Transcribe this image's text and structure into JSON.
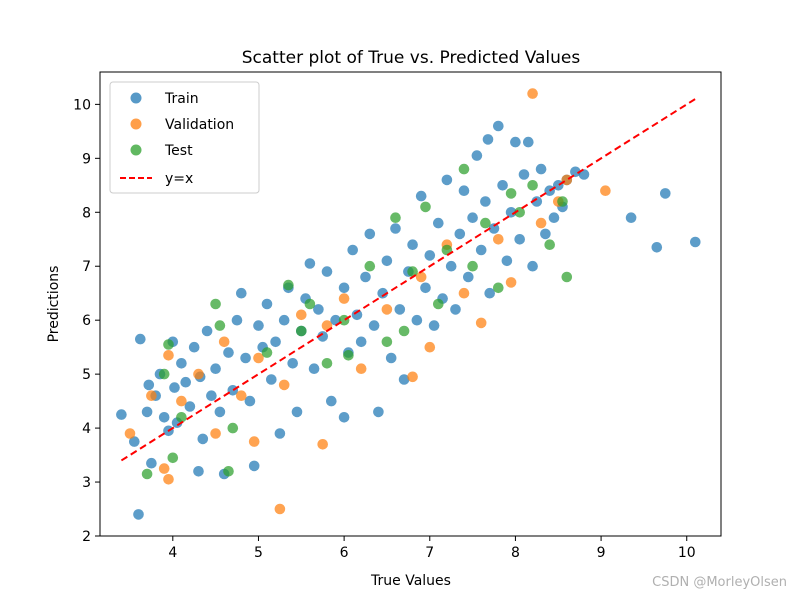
{
  "watermark": "CSDN @MorleyOlsen",
  "chart_data": {
    "type": "scatter",
    "title": "Scatter plot of True vs. Predicted Values",
    "xlabel": "True Values",
    "ylabel": "Predictions",
    "xlim": [
      3.15,
      10.4
    ],
    "ylim": [
      2.0,
      10.6
    ],
    "xticks": [
      4,
      5,
      6,
      7,
      8,
      9,
      10
    ],
    "yticks": [
      2,
      3,
      4,
      5,
      6,
      7,
      8,
      9,
      10
    ],
    "grid": false,
    "legend_position": "top-left",
    "series": [
      {
        "name": "Train",
        "color": "#1f77b4",
        "points": [
          [
            3.4,
            4.25
          ],
          [
            3.55,
            3.75
          ],
          [
            3.6,
            2.4
          ],
          [
            3.62,
            5.65
          ],
          [
            3.7,
            4.3
          ],
          [
            3.72,
            4.8
          ],
          [
            3.75,
            3.35
          ],
          [
            3.8,
            4.6
          ],
          [
            3.85,
            5.0
          ],
          [
            3.9,
            4.2
          ],
          [
            3.95,
            3.95
          ],
          [
            4.0,
            5.6
          ],
          [
            4.02,
            4.75
          ],
          [
            4.05,
            4.1
          ],
          [
            4.1,
            5.2
          ],
          [
            4.15,
            4.85
          ],
          [
            4.2,
            4.4
          ],
          [
            4.25,
            5.5
          ],
          [
            4.3,
            3.2
          ],
          [
            4.32,
            4.95
          ],
          [
            4.35,
            3.8
          ],
          [
            4.4,
            5.8
          ],
          [
            4.45,
            4.6
          ],
          [
            4.5,
            5.1
          ],
          [
            4.55,
            4.3
          ],
          [
            4.6,
            3.15
          ],
          [
            4.65,
            5.4
          ],
          [
            4.7,
            4.7
          ],
          [
            4.75,
            6.0
          ],
          [
            4.8,
            6.5
          ],
          [
            4.85,
            5.3
          ],
          [
            4.9,
            4.5
          ],
          [
            4.95,
            3.3
          ],
          [
            5.0,
            5.9
          ],
          [
            5.05,
            5.5
          ],
          [
            5.1,
            6.3
          ],
          [
            5.15,
            4.9
          ],
          [
            5.2,
            5.6
          ],
          [
            5.25,
            3.9
          ],
          [
            5.3,
            6.0
          ],
          [
            5.35,
            6.6
          ],
          [
            5.4,
            5.2
          ],
          [
            5.45,
            4.3
          ],
          [
            5.5,
            5.8
          ],
          [
            5.55,
            6.4
          ],
          [
            5.6,
            7.05
          ],
          [
            5.65,
            5.1
          ],
          [
            5.7,
            6.2
          ],
          [
            5.75,
            5.7
          ],
          [
            5.8,
            6.9
          ],
          [
            5.85,
            4.5
          ],
          [
            5.9,
            6.0
          ],
          [
            6.0,
            6.6
          ],
          [
            6.0,
            4.2
          ],
          [
            6.05,
            5.4
          ],
          [
            6.1,
            7.3
          ],
          [
            6.15,
            6.1
          ],
          [
            6.2,
            5.6
          ],
          [
            6.25,
            6.8
          ],
          [
            6.3,
            7.6
          ],
          [
            6.35,
            5.9
          ],
          [
            6.4,
            4.3
          ],
          [
            6.45,
            6.5
          ],
          [
            6.5,
            7.1
          ],
          [
            6.55,
            5.3
          ],
          [
            6.6,
            7.7
          ],
          [
            6.65,
            6.2
          ],
          [
            6.7,
            4.9
          ],
          [
            6.75,
            6.9
          ],
          [
            6.8,
            7.4
          ],
          [
            6.85,
            6.0
          ],
          [
            6.9,
            8.3
          ],
          [
            6.95,
            6.6
          ],
          [
            7.0,
            7.2
          ],
          [
            7.05,
            5.9
          ],
          [
            7.1,
            7.8
          ],
          [
            7.15,
            6.4
          ],
          [
            7.2,
            8.6
          ],
          [
            7.25,
            7.0
          ],
          [
            7.3,
            6.2
          ],
          [
            7.35,
            7.6
          ],
          [
            7.4,
            8.4
          ],
          [
            7.45,
            6.8
          ],
          [
            7.5,
            7.9
          ],
          [
            7.55,
            9.05
          ],
          [
            7.6,
            7.3
          ],
          [
            7.65,
            8.2
          ],
          [
            7.68,
            9.35
          ],
          [
            7.7,
            6.5
          ],
          [
            7.75,
            7.7
          ],
          [
            7.8,
            9.6
          ],
          [
            7.85,
            8.5
          ],
          [
            7.9,
            7.1
          ],
          [
            7.95,
            8.0
          ],
          [
            8.0,
            9.3
          ],
          [
            8.05,
            7.5
          ],
          [
            8.1,
            8.7
          ],
          [
            8.15,
            9.3
          ],
          [
            8.2,
            7.0
          ],
          [
            8.25,
            8.2
          ],
          [
            8.3,
            8.8
          ],
          [
            8.35,
            7.6
          ],
          [
            8.4,
            8.4
          ],
          [
            8.45,
            7.9
          ],
          [
            8.5,
            8.5
          ],
          [
            8.55,
            8.1
          ],
          [
            8.6,
            8.6
          ],
          [
            8.7,
            8.75
          ],
          [
            8.8,
            8.7
          ],
          [
            9.35,
            7.9
          ],
          [
            9.65,
            7.35
          ],
          [
            9.75,
            8.35
          ],
          [
            10.1,
            7.45
          ]
        ]
      },
      {
        "name": "Validation",
        "color": "#ff7f0e",
        "points": [
          [
            3.5,
            3.9
          ],
          [
            3.75,
            4.6
          ],
          [
            3.95,
            5.35
          ],
          [
            3.9,
            3.25
          ],
          [
            3.95,
            3.05
          ],
          [
            4.1,
            4.5
          ],
          [
            4.3,
            5.0
          ],
          [
            4.5,
            3.9
          ],
          [
            4.6,
            5.6
          ],
          [
            4.8,
            4.6
          ],
          [
            4.95,
            3.75
          ],
          [
            5.0,
            5.3
          ],
          [
            5.25,
            2.5
          ],
          [
            5.3,
            4.8
          ],
          [
            5.5,
            6.1
          ],
          [
            5.75,
            3.7
          ],
          [
            5.8,
            5.9
          ],
          [
            6.0,
            6.4
          ],
          [
            6.2,
            5.1
          ],
          [
            6.5,
            6.2
          ],
          [
            6.8,
            4.95
          ],
          [
            6.9,
            6.8
          ],
          [
            7.0,
            5.5
          ],
          [
            7.2,
            7.4
          ],
          [
            7.4,
            6.5
          ],
          [
            7.6,
            5.95
          ],
          [
            7.8,
            7.5
          ],
          [
            7.95,
            6.7
          ],
          [
            8.2,
            10.2
          ],
          [
            8.3,
            7.8
          ],
          [
            8.5,
            8.2
          ],
          [
            8.6,
            8.6
          ],
          [
            9.05,
            8.4
          ]
        ]
      },
      {
        "name": "Test",
        "color": "#2ca02c",
        "points": [
          [
            3.7,
            3.15
          ],
          [
            3.95,
            5.55
          ],
          [
            3.9,
            5.0
          ],
          [
            4.0,
            3.45
          ],
          [
            4.1,
            4.2
          ],
          [
            4.5,
            6.3
          ],
          [
            4.55,
            5.9
          ],
          [
            4.65,
            3.2
          ],
          [
            4.7,
            4.0
          ],
          [
            5.1,
            5.4
          ],
          [
            5.35,
            6.65
          ],
          [
            5.5,
            5.8
          ],
          [
            5.6,
            6.3
          ],
          [
            5.8,
            5.2
          ],
          [
            6.0,
            6.0
          ],
          [
            6.05,
            5.35
          ],
          [
            6.3,
            7.0
          ],
          [
            6.5,
            5.6
          ],
          [
            6.6,
            7.9
          ],
          [
            6.7,
            5.8
          ],
          [
            6.8,
            6.9
          ],
          [
            6.95,
            8.1
          ],
          [
            7.1,
            6.3
          ],
          [
            7.2,
            7.3
          ],
          [
            7.4,
            8.8
          ],
          [
            7.5,
            7.0
          ],
          [
            7.65,
            7.8
          ],
          [
            7.8,
            6.6
          ],
          [
            7.95,
            8.35
          ],
          [
            8.05,
            8.0
          ],
          [
            8.2,
            8.5
          ],
          [
            8.4,
            7.4
          ],
          [
            8.55,
            8.2
          ],
          [
            8.6,
            6.8
          ]
        ]
      }
    ],
    "reference_line": {
      "name": "y=x",
      "color": "#ff0000",
      "x": [
        3.4,
        10.1
      ],
      "y": [
        3.4,
        10.1
      ],
      "style": "dashed"
    }
  }
}
